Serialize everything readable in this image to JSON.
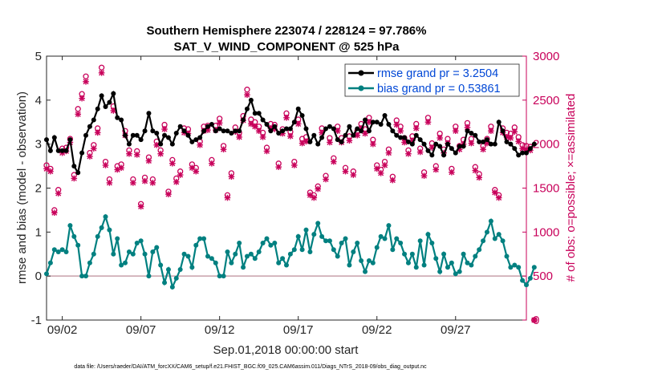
{
  "chart_data": {
    "type": "line",
    "title_line1": "Southern Hemisphere 223074 / 228124 = 97.786%",
    "title_line2": "SAT_V_WIND_COMPONENT @ 525 hPa",
    "xlabel": "Sep.01,2018 00:00:00 start",
    "ylabel_left": "rmse and bias (model - observation)",
    "ylabel_right": "# of obs: o=possible; ×=assimilated",
    "footnote": "data file: /Users/raeder/DAI/ATM_forcXX/CAM6_setup/f.e21.FHIST_BGC.f09_025.CAM6assim.011/Diags_NTrS_2018-09/obs_diag_output.nc",
    "x_range": [
      0,
      30.5
    ],
    "ylim_left": [
      -1,
      5
    ],
    "ylim_right": [
      0,
      3000
    ],
    "xtick_values": [
      1,
      6,
      11,
      16,
      21,
      26
    ],
    "xtick_labels": [
      "09/02",
      "09/07",
      "09/12",
      "09/17",
      "09/22",
      "09/27"
    ],
    "ytick_left": [
      "-1",
      "0",
      "1",
      "2",
      "3",
      "4",
      "5"
    ],
    "ytick_right": [
      "0",
      "500",
      "1000",
      "1500",
      "2000",
      "2500",
      "3000"
    ],
    "zero_line": 0,
    "colors": {
      "rmse": "#000000",
      "bias": "#008080",
      "obs": "#c8005a",
      "zero": "#c8a0aa",
      "legend_text": "#0047d6"
    },
    "series": [
      {
        "name": "rmse grand pr = 3.2504",
        "axis": "left",
        "step": 0.25,
        "start": 0,
        "values": [
          3.1,
          2.85,
          3.15,
          2.85,
          2.85,
          2.85,
          3.1,
          2.5,
          2.35,
          2.8,
          3.2,
          3.4,
          3.55,
          3.8,
          4.1,
          3.85,
          3.95,
          4.15,
          3.6,
          3.55,
          3.2,
          3.0,
          3.2,
          3.2,
          3.1,
          3.3,
          3.7,
          3.3,
          3.25,
          3.0,
          3.2,
          3.15,
          3.0,
          3.25,
          3.4,
          3.3,
          3.2,
          3.05,
          3.1,
          3.15,
          3.3,
          3.4,
          3.45,
          3.3,
          3.35,
          3.3,
          3.3,
          3.25,
          3.3,
          3.3,
          3.55,
          3.8,
          4.0,
          3.7,
          3.7,
          3.55,
          3.45,
          3.3,
          3.4,
          3.25,
          3.3,
          3.35,
          3.35,
          3.5,
          3.8,
          3.65,
          3.35,
          3.05,
          3.2,
          3.0,
          3.15,
          3.35,
          3.4,
          3.35,
          3.1,
          3.05,
          3.2,
          3.4,
          3.2,
          3.35,
          3.3,
          3.55,
          3.3,
          3.5,
          3.5,
          3.45,
          3.65,
          3.45,
          3.3,
          3.2,
          3.15,
          3.15,
          3.05,
          3.0,
          3.2,
          3.1,
          3.0,
          2.85,
          2.75,
          3.0,
          2.95,
          2.75,
          3.0,
          2.9,
          2.8,
          2.95,
          2.95,
          3.3,
          3.25,
          3.2,
          3.05,
          3.05,
          3.1,
          3.0,
          3.0,
          3.5,
          3.3,
          3.05,
          3.0,
          2.9,
          2.75,
          2.8,
          2.8,
          2.9,
          3.0
        ]
      },
      {
        "name": "bias grand pr = 0.53861",
        "axis": "left",
        "step": 0.25,
        "start": 0,
        "values": [
          0.05,
          0.3,
          0.6,
          0.55,
          0.6,
          0.55,
          1.15,
          0.9,
          0.7,
          0.0,
          0.0,
          0.3,
          0.5,
          0.9,
          1.1,
          1.35,
          1.05,
          0.5,
          0.85,
          0.25,
          0.3,
          0.55,
          0.5,
          0.75,
          0.8,
          0.5,
          0.0,
          0.55,
          0.65,
          0.25,
          -0.15,
          0.15,
          -0.25,
          -0.05,
          0.15,
          0.5,
          0.45,
          0.2,
          0.7,
          0.85,
          0.85,
          0.45,
          0.4,
          0.3,
          0.0,
          0.0,
          0.55,
          0.3,
          0.5,
          0.75,
          0.2,
          0.45,
          0.5,
          0.4,
          0.55,
          0.75,
          0.85,
          0.7,
          0.75,
          0.3,
          0.4,
          0.25,
          0.5,
          0.6,
          0.9,
          0.6,
          1.05,
          0.55,
          0.95,
          1.2,
          0.9,
          0.8,
          0.8,
          0.6,
          0.45,
          0.75,
          0.85,
          0.25,
          0.55,
          0.75,
          0.35,
          0.1,
          0.35,
          0.3,
          0.65,
          0.9,
          0.85,
          1.15,
          0.6,
          0.85,
          0.75,
          0.5,
          0.3,
          0.5,
          0.2,
          0.8,
          0.25,
          0.95,
          0.75,
          0.4,
          0.1,
          0.5,
          0.2,
          0.3,
          0.05,
          0.1,
          0.5,
          0.3,
          0.25,
          0.45,
          0.6,
          0.8,
          1.0,
          1.25,
          0.85,
          0.95,
          0.8,
          0.45,
          0.2,
          0.25,
          0.2,
          -0.1,
          -0.2,
          -0.05,
          0.2
        ]
      },
      {
        "name": "obs possible",
        "axis": "right",
        "marker": "o",
        "step": 0.25,
        "start": 0,
        "values": [
          1760,
          1720,
          1250,
          1480,
          1950,
          1960,
          2060,
          1650,
          2400,
          2570,
          2770,
          1900,
          1990,
          2180,
          2870,
          1800,
          1600,
          2430,
          1750,
          1770,
          2150,
          1930,
          1600,
          1920,
          1320,
          1620,
          1850,
          1600,
          2030,
          1930,
          2220,
          1460,
          1820,
          1610,
          1690,
          2180,
          2170,
          1770,
          1730,
          2030,
          2200,
          2210,
          1820,
          2210,
          2290,
          1980,
          1420,
          1670,
          2190,
          2130,
          2320,
          2620,
          2280,
          2250,
          2200,
          2130,
          1960,
          2230,
          2220,
          1780,
          2170,
          2350,
          2140,
          1800,
          2280,
          2060,
          2080,
          1450,
          1420,
          1520,
          2180,
          1640,
          2070,
          1840,
          2200,
          2070,
          1730,
          2090,
          1690,
          2150,
          2230,
          2170,
          2300,
          2050,
          1760,
          1710,
          1800,
          1940,
          1630,
          2270,
          2200,
          2070,
          1930,
          2090,
          2230,
          1950,
          1680,
          2300,
          2010,
          1750,
          2120,
          1940,
          2060,
          1720,
          2200,
          1980,
          2050,
          2240,
          2060,
          1740,
          1660,
          1980,
          2060,
          2200,
          1480,
          1420,
          2180,
          2130,
          2120,
          2190,
          2080,
          1990,
          1980,
          1970,
          0
        ]
      },
      {
        "name": "obs assimilated",
        "axis": "right",
        "marker": "x",
        "step": 0.25,
        "start": 0,
        "values": [
          1720,
          1690,
          1220,
          1440,
          1900,
          1920,
          2020,
          1610,
          2340,
          2520,
          2710,
          1860,
          1950,
          2130,
          2810,
          1760,
          1560,
          2380,
          1710,
          1730,
          2100,
          1890,
          1560,
          1880,
          1290,
          1580,
          1810,
          1560,
          1990,
          1890,
          2170,
          1430,
          1780,
          1570,
          1650,
          2130,
          2120,
          1730,
          1690,
          1990,
          2150,
          2160,
          1780,
          2160,
          2240,
          1940,
          1390,
          1630,
          2140,
          2080,
          2270,
          2560,
          2230,
          2200,
          2150,
          2080,
          1920,
          2180,
          2170,
          1740,
          2120,
          2300,
          2090,
          1760,
          2230,
          2010,
          2030,
          1420,
          1390,
          1490,
          2130,
          1600,
          2020,
          1800,
          2150,
          2020,
          1690,
          2040,
          1650,
          2100,
          2180,
          2120,
          2250,
          2000,
          1720,
          1670,
          1760,
          1900,
          1590,
          2220,
          2150,
          2020,
          1890,
          2040,
          2180,
          1910,
          1640,
          2250,
          1960,
          1710,
          2070,
          1900,
          2010,
          1680,
          2150,
          1940,
          2000,
          2190,
          2010,
          1700,
          1620,
          1940,
          2010,
          2150,
          1450,
          1390,
          2130,
          2080,
          2070,
          2140,
          2030,
          1950,
          1940,
          1930,
          0
        ]
      }
    ],
    "legend": {
      "position": "top-right",
      "entries": [
        "rmse grand pr = 3.2504",
        "bias grand pr = 0.53861"
      ]
    }
  }
}
